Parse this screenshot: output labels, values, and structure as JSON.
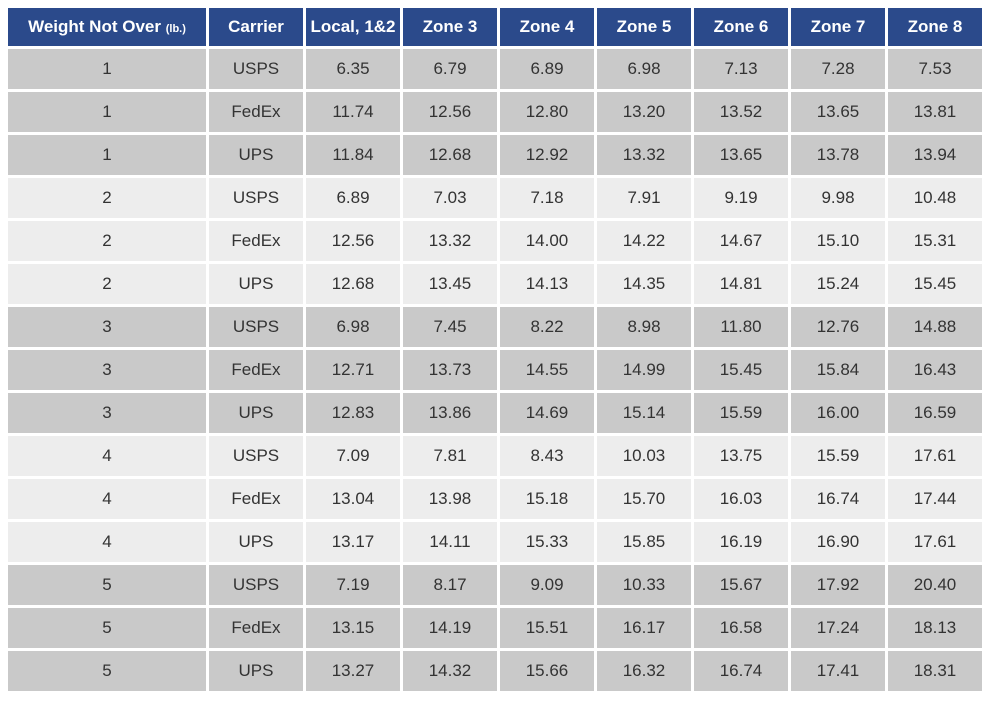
{
  "table": {
    "header": {
      "weight": "Weight Not Over",
      "weight_unit": "(lb.)",
      "columns": [
        "Carrier",
        "Local, 1&2",
        "Zone 3",
        "Zone 4",
        "Zone 5",
        "Zone 6",
        "Zone 7",
        "Zone 8"
      ]
    },
    "rows": [
      [
        "1",
        "USPS",
        "6.35",
        "6.79",
        "6.89",
        "6.98",
        "7.13",
        "7.28",
        "7.53"
      ],
      [
        "1",
        "FedEx",
        "11.74",
        "12.56",
        "12.80",
        "13.20",
        "13.52",
        "13.65",
        "13.81"
      ],
      [
        "1",
        "UPS",
        "11.84",
        "12.68",
        "12.92",
        "13.32",
        "13.65",
        "13.78",
        "13.94"
      ],
      [
        "2",
        "USPS",
        "6.89",
        "7.03",
        "7.18",
        "7.91",
        "9.19",
        "9.98",
        "10.48"
      ],
      [
        "2",
        "FedEx",
        "12.56",
        "13.32",
        "14.00",
        "14.22",
        "14.67",
        "15.10",
        "15.31"
      ],
      [
        "2",
        "UPS",
        "12.68",
        "13.45",
        "14.13",
        "14.35",
        "14.81",
        "15.24",
        "15.45"
      ],
      [
        "3",
        "USPS",
        "6.98",
        "7.45",
        "8.22",
        "8.98",
        "11.80",
        "12.76",
        "14.88"
      ],
      [
        "3",
        "FedEx",
        "12.71",
        "13.73",
        "14.55",
        "14.99",
        "15.45",
        "15.84",
        "16.43"
      ],
      [
        "3",
        "UPS",
        "12.83",
        "13.86",
        "14.69",
        "15.14",
        "15.59",
        "16.00",
        "16.59"
      ],
      [
        "4",
        "USPS",
        "7.09",
        "7.81",
        "8.43",
        "10.03",
        "13.75",
        "15.59",
        "17.61"
      ],
      [
        "4",
        "FedEx",
        "13.04",
        "13.98",
        "15.18",
        "15.70",
        "16.03",
        "16.74",
        "17.44"
      ],
      [
        "4",
        "UPS",
        "13.17",
        "14.11",
        "15.33",
        "15.85",
        "16.19",
        "16.90",
        "17.61"
      ],
      [
        "5",
        "USPS",
        "7.19",
        "8.17",
        "9.09",
        "10.33",
        "15.67",
        "17.92",
        "20.40"
      ],
      [
        "5",
        "FedEx",
        "13.15",
        "14.19",
        "15.51",
        "16.17",
        "16.58",
        "17.24",
        "18.13"
      ],
      [
        "5",
        "UPS",
        "13.27",
        "14.32",
        "15.66",
        "16.32",
        "16.74",
        "17.41",
        "18.31"
      ]
    ]
  }
}
